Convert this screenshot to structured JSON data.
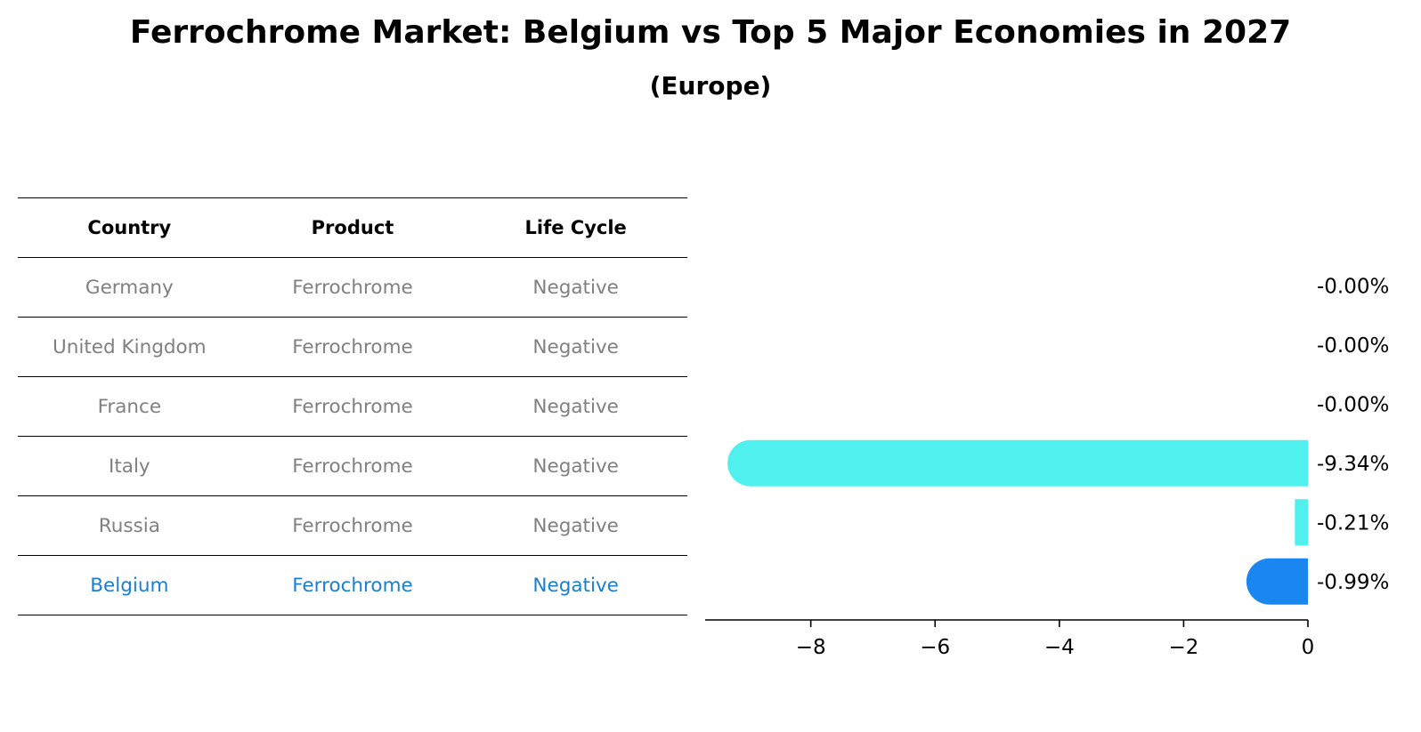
{
  "title": "Ferrochrome Market: Belgium vs Top 5 Major Economies in 2027",
  "subtitle": "(Europe)",
  "table": {
    "headers": [
      "Country",
      "Product",
      "Life Cycle"
    ],
    "rows": [
      [
        "Germany",
        "Ferrochrome",
        "Negative"
      ],
      [
        "United Kingdom",
        "Ferrochrome",
        "Negative"
      ],
      [
        "France",
        "Ferrochrome",
        "Negative"
      ],
      [
        "Italy",
        "Ferrochrome",
        "Negative"
      ],
      [
        "Russia",
        "Ferrochrome",
        "Negative"
      ],
      [
        "Belgium",
        "Ferrochrome",
        "Negative"
      ]
    ],
    "highlight_row": 5,
    "text_color": "#808080",
    "highlight_color": "#1a7fd1"
  },
  "chart_data": {
    "type": "bar",
    "orientation": "horizontal",
    "categories": [
      "Germany",
      "United Kingdom",
      "France",
      "Italy",
      "Russia",
      "Belgium"
    ],
    "values": [
      -0.0,
      -0.0,
      -0.0,
      -9.34,
      -0.21,
      -0.99
    ],
    "data_labels": [
      "-0.00%",
      "-0.00%",
      "-0.00%",
      "-9.34%",
      "-0.21%",
      "-0.99%"
    ],
    "xlim": [
      -9.7,
      0
    ],
    "xticks": [
      -8,
      -6,
      -4,
      -2,
      0
    ],
    "xtick_labels": [
      "−8",
      "−6",
      "−4",
      "−2",
      "0"
    ],
    "bar_colors": [
      "#4ff0ee",
      "#4ff0ee",
      "#4ff0ee",
      "#4ff0ee",
      "#4ff0ee",
      "#1a87f0"
    ],
    "grid": false
  }
}
